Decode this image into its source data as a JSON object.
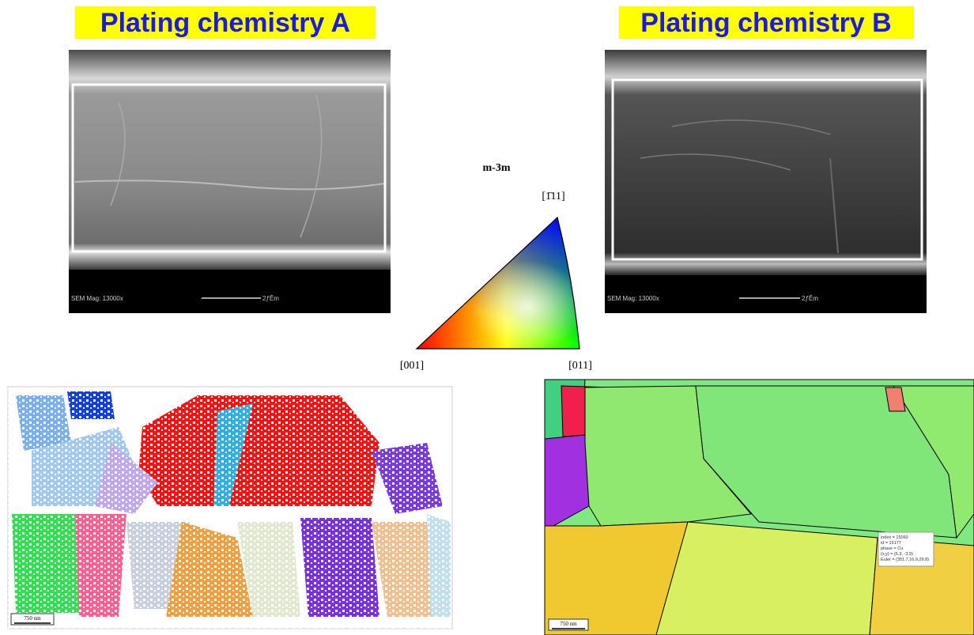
{
  "panels": {
    "a": {
      "title": "Plating chemistry A",
      "sem_caption": "SEM Mag: 13000x",
      "sem_scale": "2ƒÊm",
      "ebsd_scale": "750 nm"
    },
    "b": {
      "title": "Plating chemistry B",
      "sem_caption": "SEM Mag: 13000x",
      "sem_scale": "2ƒÊm",
      "ebsd_scale": "750 nm",
      "tooltip": [
        "index = 15060",
        "id = 15177",
        "phase = Cu",
        "(x,y) = (6.3, -3.9)",
        "Euler = (351.7,16.9,29.8)"
      ]
    }
  },
  "legend": {
    "symmetry": "m-3m",
    "corners": [
      "[1̄11]",
      "[001]",
      "[011]"
    ]
  }
}
